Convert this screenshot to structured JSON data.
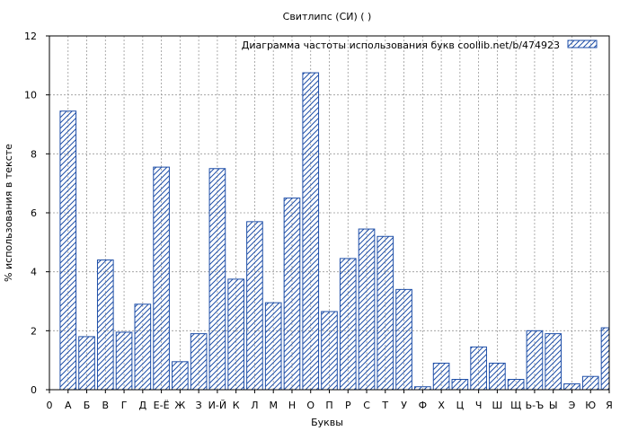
{
  "chart_data": {
    "type": "bar",
    "title": "Свитлипс (СИ) ( )",
    "xlabel": "Буквы",
    "ylabel": "% использования в тексте",
    "legend": {
      "label": "Диаграмма частоты использования букв  coollib.net/b/474923",
      "position": "top-right"
    },
    "ylim": [
      0,
      12
    ],
    "yticks": [
      0,
      2,
      4,
      6,
      8,
      10,
      12
    ],
    "grid": true,
    "bar_color": "#1f4fa8",
    "x_tick_labels": [
      "0",
      "А",
      "Б",
      "В",
      "Г",
      "Д",
      "Е-Ё",
      "Ж",
      "З",
      "И-Й",
      "К",
      "Л",
      "М",
      "Н",
      "О",
      "П",
      "Р",
      "С",
      "Т",
      "У",
      "Ф",
      "Х",
      "Ц",
      "Ч",
      "Ш",
      "Щ",
      "Ь-Ъ",
      "Ы",
      "Э",
      "Ю",
      "Я"
    ],
    "categories": [
      "А",
      "Б",
      "В",
      "Г",
      "Д",
      "Е-Ё",
      "Ж",
      "З",
      "И-Й",
      "К",
      "Л",
      "М",
      "Н",
      "О",
      "П",
      "Р",
      "С",
      "Т",
      "У",
      "Ф",
      "Х",
      "Ц",
      "Ч",
      "Ш",
      "Щ",
      "Ь-Ъ",
      "Ы",
      "Э",
      "Ю",
      "Я"
    ],
    "values": [
      9.45,
      1.8,
      4.4,
      1.95,
      2.9,
      7.55,
      0.95,
      1.9,
      7.5,
      3.75,
      5.7,
      2.95,
      6.5,
      10.75,
      2.65,
      4.45,
      5.45,
      5.2,
      3.4,
      0.1,
      0.9,
      0.35,
      1.45,
      0.9,
      0.35,
      2.0,
      1.9,
      0.2,
      0.45,
      2.1
    ]
  }
}
